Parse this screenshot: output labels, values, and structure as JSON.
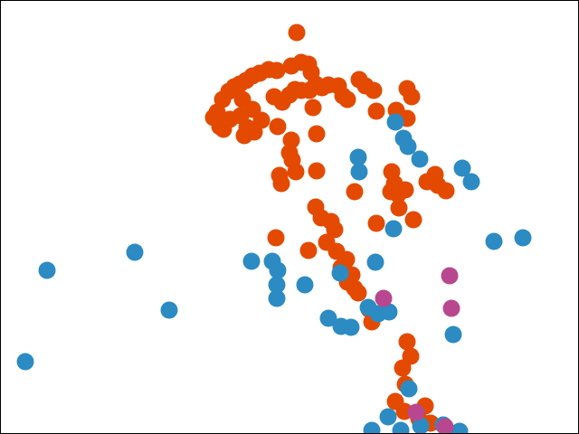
{
  "chart_data": {
    "type": "scatter",
    "title": "",
    "xlabel": "",
    "ylabel": "",
    "grid": false,
    "legend": "none",
    "series": [
      {
        "color": "#E34A00",
        "points": [
          [
            328,
            36
          ],
          [
            306,
            78
          ],
          [
            322,
            73
          ],
          [
            333,
            69
          ],
          [
            341,
            71
          ],
          [
            344,
            80
          ],
          [
            297,
            77
          ],
          [
            287,
            81
          ],
          [
            279,
            84
          ],
          [
            272,
            89
          ],
          [
            265,
            93
          ],
          [
            259,
            96
          ],
          [
            253,
            101
          ],
          [
            246,
            110
          ],
          [
            240,
            124
          ],
          [
            236,
            130
          ],
          [
            243,
            140
          ],
          [
            247,
            143
          ],
          [
            254,
            132
          ],
          [
            266,
            128
          ],
          [
            273,
            141
          ],
          [
            281,
            146
          ],
          [
            270,
            150
          ],
          [
            289,
            133
          ],
          [
            279,
            121
          ],
          [
            268,
            110
          ],
          [
            303,
            107
          ],
          [
            312,
            113
          ],
          [
            320,
            105
          ],
          [
            326,
            99
          ],
          [
            333,
            100
          ],
          [
            342,
            100
          ],
          [
            349,
            93
          ],
          [
            356,
            97
          ],
          [
            363,
            94
          ],
          [
            374,
            95
          ],
          [
            379,
            106
          ],
          [
            384,
            110
          ],
          [
            397,
            88
          ],
          [
            404,
            95
          ],
          [
            413,
            100
          ],
          [
            416,
            123
          ],
          [
            438,
            122
          ],
          [
            450,
            98
          ],
          [
            455,
            107
          ],
          [
            450,
            131
          ],
          [
            307,
            140
          ],
          [
            322,
            155
          ],
          [
            320,
            169
          ],
          [
            323,
            177
          ],
          [
            327,
            190
          ],
          [
            309,
            194
          ],
          [
            311,
            203
          ],
          [
            350,
            148
          ],
          [
            350,
            189
          ],
          [
            346,
            119
          ],
          [
            392,
            212
          ],
          [
            416,
            247
          ],
          [
            433,
            190
          ],
          [
            436,
            203
          ],
          [
            440,
            215
          ],
          [
            441,
            230
          ],
          [
            432,
            212
          ],
          [
            448,
            210
          ],
          [
            472,
            201
          ],
          [
            481,
            193
          ],
          [
            484,
            205
          ],
          [
            493,
            211
          ],
          [
            457,
            243
          ],
          [
            305,
            263
          ],
          [
            341,
            277
          ],
          [
            349,
            229
          ],
          [
            355,
            241
          ],
          [
            366,
            245
          ],
          [
            370,
            254
          ],
          [
            361,
            268
          ],
          [
            372,
            278
          ],
          [
            383,
            287
          ],
          [
            389,
            304
          ],
          [
            377,
            296
          ],
          [
            384,
            312
          ],
          [
            392,
            319
          ],
          [
            396,
            324
          ],
          [
            408,
            342
          ],
          [
            411,
            356
          ],
          [
            450,
            378
          ],
          [
            454,
            394
          ],
          [
            445,
            407
          ],
          [
            448,
            425
          ],
          [
            437,
            444
          ],
          [
            447,
            455
          ],
          [
            470,
            449
          ],
          [
            463,
            463
          ],
          [
            476,
            468
          ]
        ]
      },
      {
        "color": "#2B8BC2",
        "points": [
          [
            52,
            299
          ],
          [
            149,
            279
          ],
          [
            187,
            343
          ],
          [
            28,
            400
          ],
          [
            278,
            289
          ],
          [
            301,
            289
          ],
          [
            307,
            299
          ],
          [
            306,
            315
          ],
          [
            306,
            330
          ],
          [
            337,
            315
          ],
          [
            363,
            352
          ],
          [
            377,
            361
          ],
          [
            388,
            362
          ],
          [
            415,
            290
          ],
          [
            407,
            340
          ],
          [
            418,
            347
          ],
          [
            430,
            345
          ],
          [
            437,
            135
          ],
          [
            446,
            153
          ],
          [
            451,
            162
          ],
          [
            464,
            176
          ],
          [
            396,
            174
          ],
          [
            397,
            190
          ],
          [
            511,
            186
          ],
          [
            521,
            201
          ],
          [
            546,
            267
          ],
          [
            578,
            263
          ],
          [
            501,
            370
          ],
          [
            435,
            253
          ],
          [
            376,
            302
          ],
          [
            411,
            476
          ],
          [
            429,
            461
          ],
          [
            443,
            476
          ],
          [
            452,
            430
          ],
          [
            465,
            471
          ],
          [
            490,
            470
          ],
          [
            508,
            477
          ]
        ]
      },
      {
        "color": "#B8478F",
        "points": [
          [
            424,
            330
          ],
          [
            497,
            305
          ],
          [
            499,
            341
          ],
          [
            460,
            456
          ],
          [
            492,
            472
          ]
        ]
      }
    ]
  }
}
